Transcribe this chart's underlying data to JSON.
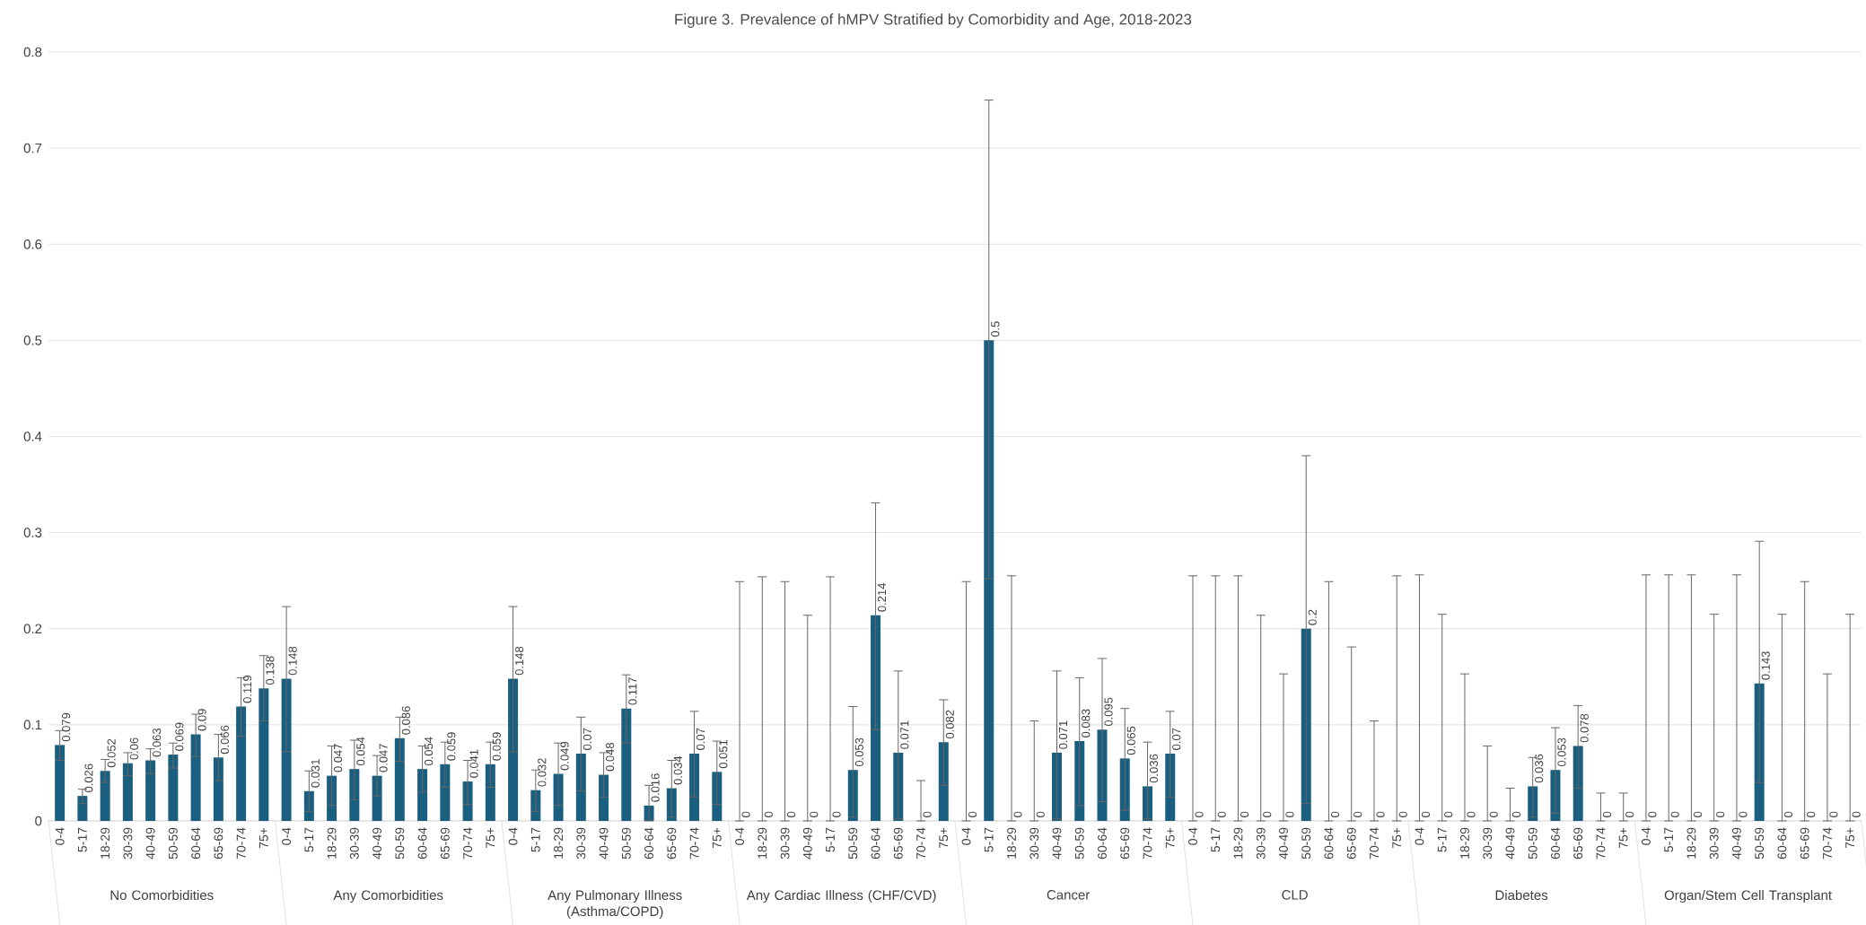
{
  "chart_data": {
    "type": "bar",
    "title": "Figure 3. Prevalence of hMPV Stratified by Comorbidity and Age, 2018-2023",
    "categories": [
      "0-4",
      "5-17",
      "18-29",
      "30-39",
      "40-49",
      "50-59",
      "60-64",
      "65-69",
      "70-74",
      "75+",
      "0-4",
      "5-17",
      "18-29",
      "30-39",
      "40-49",
      "50-59",
      "60-64",
      "65-69",
      "70-74",
      "75+",
      "0-4",
      "5-17",
      "18-29",
      "30-39",
      "40-49",
      "50-59",
      "60-64",
      "65-69",
      "70-74",
      "75+",
      "0-4",
      "18-29",
      "30-39",
      "40-49",
      "5-17",
      "50-59",
      "60-64",
      "65-69",
      "70-74",
      "75+",
      "0-4",
      "5-17",
      "18-29",
      "30-39",
      "40-49",
      "50-59",
      "60-64",
      "65-69",
      "70-74",
      "75+",
      "0-4",
      "5-17",
      "18-29",
      "30-39",
      "40-49",
      "50-59",
      "60-64",
      "65-69",
      "70-74",
      "75+",
      "0-4",
      "5-17",
      "18-29",
      "30-39",
      "40-49",
      "50-59",
      "60-64",
      "65-69",
      "70-74",
      "75+",
      "0-4",
      "5-17",
      "18-29",
      "30-39",
      "40-49",
      "50-59",
      "60-64",
      "65-69",
      "70-74",
      "75+"
    ],
    "values": [
      0.079,
      0.026,
      0.052,
      0.06,
      0.063,
      0.069,
      0.09,
      0.066,
      0.119,
      0.138,
      0.148,
      0.031,
      0.047,
      0.054,
      0.047,
      0.086,
      0.054,
      0.059,
      0.041,
      0.059,
      0.148,
      0.032,
      0.049,
      0.07,
      0.048,
      0.117,
      0.016,
      0.034,
      0.07,
      0.051,
      0,
      0,
      0,
      0,
      0,
      0.053,
      0.214,
      0.071,
      0,
      0.082,
      0,
      0.5,
      0,
      0,
      0.071,
      0.083,
      0.095,
      0.065,
      0.036,
      0.07,
      0,
      0,
      0,
      0,
      0,
      0.2,
      0,
      0,
      0,
      0,
      0,
      0,
      0,
      0,
      0,
      0.036,
      0.053,
      0.078,
      0,
      0,
      0,
      0,
      0,
      0,
      0,
      0.143,
      0,
      0,
      0,
      0
    ],
    "errors": [
      [
        0.063,
        0.094
      ],
      [
        0.018,
        0.033
      ],
      [
        0.04,
        0.064
      ],
      [
        0.047,
        0.071
      ],
      [
        0.049,
        0.075
      ],
      [
        0.055,
        0.081
      ],
      [
        0.067,
        0.111
      ],
      [
        0.042,
        0.09
      ],
      [
        0.088,
        0.149
      ],
      [
        0.104,
        0.172
      ],
      [
        0.072,
        0.223
      ],
      [
        0.01,
        0.052
      ],
      [
        0.016,
        0.078
      ],
      [
        0.022,
        0.084
      ],
      [
        0.026,
        0.068
      ],
      [
        0.062,
        0.108
      ],
      [
        0.03,
        0.078
      ],
      [
        0.035,
        0.082
      ],
      [
        0.017,
        0.063
      ],
      [
        0.035,
        0.082
      ],
      [
        0.072,
        0.223
      ],
      [
        0.01,
        0.053
      ],
      [
        0.016,
        0.081
      ],
      [
        0.031,
        0.108
      ],
      [
        0.025,
        0.071
      ],
      [
        0.081,
        0.152
      ],
      [
        0,
        0.037
      ],
      [
        0.004,
        0.063
      ],
      [
        0.025,
        0.114
      ],
      [
        0.017,
        0.083
      ],
      [
        0,
        0.249
      ],
      [
        0,
        0.254
      ],
      [
        0,
        0.249
      ],
      [
        0,
        0.214
      ],
      [
        0,
        0.254
      ],
      [
        0.004,
        0.119
      ],
      [
        0.095,
        0.331
      ],
      [
        0.002,
        0.156
      ],
      [
        0,
        0.042
      ],
      [
        0.037,
        0.126
      ],
      [
        0,
        0.249
      ],
      [
        0.252,
        0.75
      ],
      [
        0,
        0.255
      ],
      [
        0,
        0.104
      ],
      [
        0.002,
        0.156
      ],
      [
        0.016,
        0.149
      ],
      [
        0.02,
        0.169
      ],
      [
        0.011,
        0.117
      ],
      [
        0.002,
        0.082
      ],
      [
        0.025,
        0.114
      ],
      [
        0,
        0.255
      ],
      [
        0,
        0.255
      ],
      [
        0,
        0.255
      ],
      [
        0,
        0.214
      ],
      [
        0,
        0.153
      ],
      [
        0.018,
        0.38
      ],
      [
        0,
        0.249
      ],
      [
        0,
        0.181
      ],
      [
        0,
        0.104
      ],
      [
        0,
        0.255
      ],
      [
        0,
        0.256
      ],
      [
        0,
        0.215
      ],
      [
        0,
        0.153
      ],
      [
        0,
        0.078
      ],
      [
        0,
        0.034
      ],
      [
        0.004,
        0.066
      ],
      [
        0.008,
        0.097
      ],
      [
        0.034,
        0.12
      ],
      [
        0,
        0.029
      ],
      [
        0,
        0.029
      ],
      [
        0,
        0.256
      ],
      [
        0,
        0.256
      ],
      [
        0,
        0.256
      ],
      [
        0,
        0.215
      ],
      [
        0,
        0.256
      ],
      [
        0.04,
        0.291
      ],
      [
        0,
        0.215
      ],
      [
        0,
        0.249
      ],
      [
        0,
        0.153
      ],
      [
        0,
        0.215
      ]
    ],
    "color": "#1a5f80",
    "ylim": [
      0,
      0.8
    ],
    "yticks": [
      0,
      0.1,
      0.2,
      0.3,
      0.4,
      0.5,
      0.6,
      0.7,
      0.8
    ],
    "grid": "y",
    "data_labels": true,
    "annotations": [
      "No Comorbidities",
      "Any Comorbidities",
      "Any Pulmonary Illness (Asthma/COPD)",
      "Any Cardiac Illness (CHF/CVD)",
      "Cancer",
      "CLD",
      "Diabetes",
      "Organ/Stem Cell Transplant"
    ]
  }
}
